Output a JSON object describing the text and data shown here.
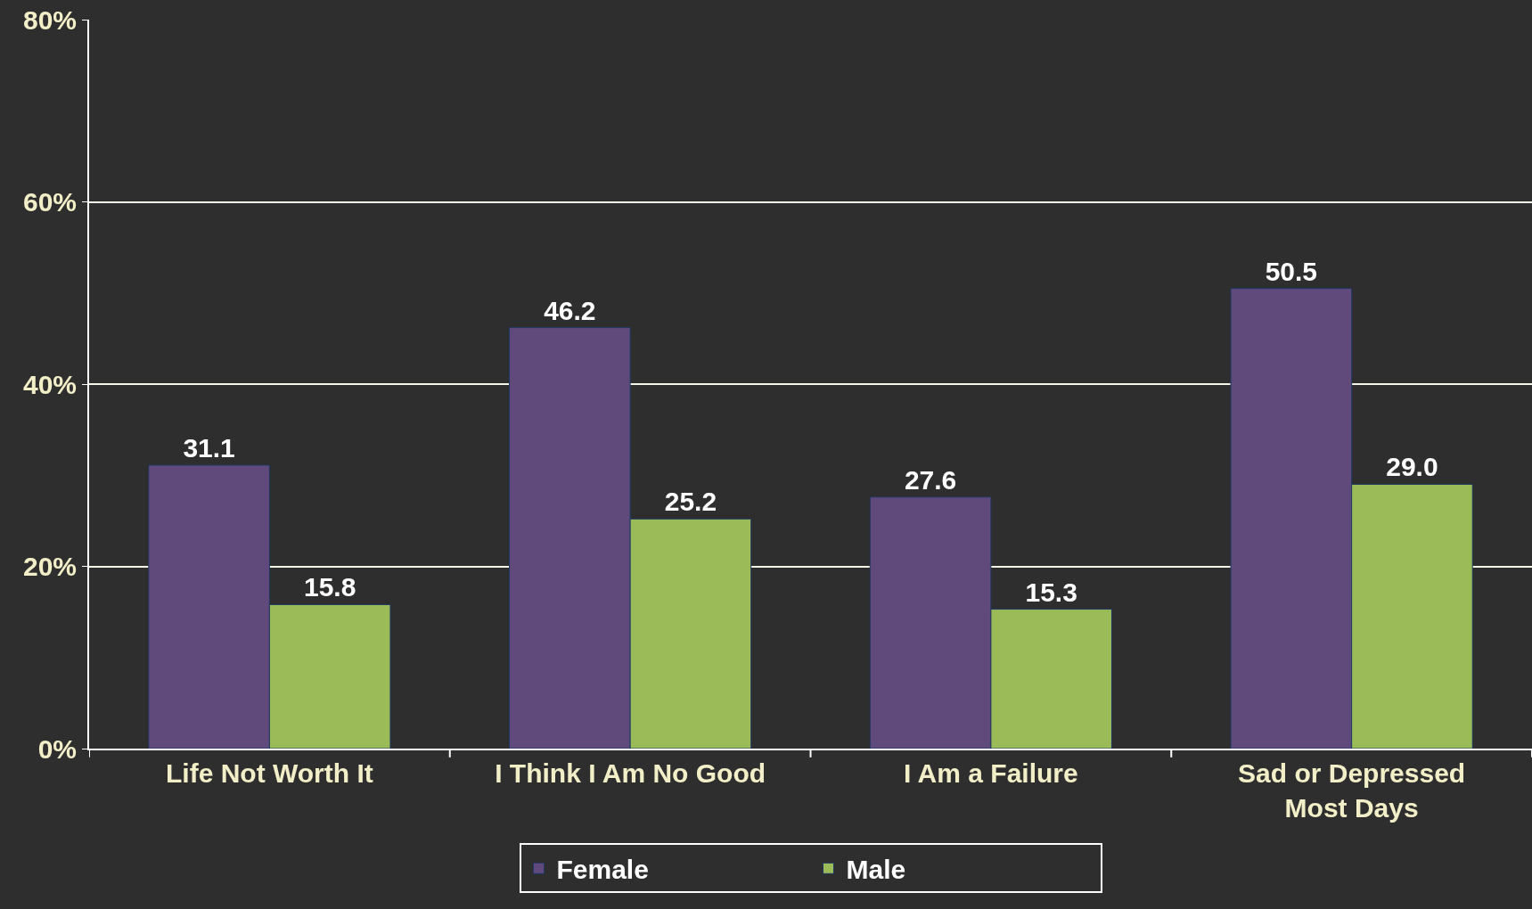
{
  "chart_data": {
    "type": "bar",
    "categories": [
      "Life Not Worth It",
      "I Think I Am No Good",
      "I Am a Failure",
      "Sad or Depressed Most Days"
    ],
    "series": [
      {
        "name": "Female",
        "color": "#604a7b",
        "values": [
          31.1,
          46.2,
          27.6,
          50.5
        ],
        "value_labels": [
          "31.1",
          "46.2",
          "27.6",
          "50.5"
        ]
      },
      {
        "name": "Male",
        "color": "#9bbb59",
        "values": [
          15.8,
          25.2,
          15.3,
          29.0
        ],
        "value_labels": [
          "15.8",
          "25.2",
          "15.3",
          "29.0"
        ]
      }
    ],
    "ylim": [
      0,
      80
    ],
    "yticks": [
      {
        "value": 0,
        "label": "0%"
      },
      {
        "value": 20,
        "label": "20%"
      },
      {
        "value": 40,
        "label": "40%"
      },
      {
        "value": 60,
        "label": "60%"
      },
      {
        "value": 80,
        "label": "80%"
      }
    ],
    "grid": "y",
    "legend": "bottom"
  }
}
